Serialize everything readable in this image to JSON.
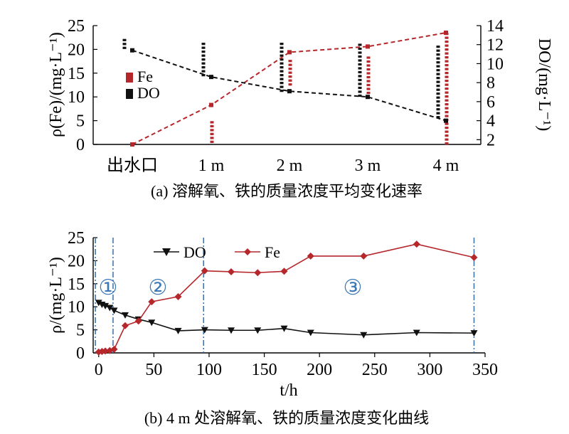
{
  "colors": {
    "fe": "#b5272b",
    "do": "#111111",
    "divider": "#3b6ea8",
    "circled": "#3b78b5"
  },
  "chart_data": [
    {
      "type": "line",
      "caption": "(a) 溶解氧、铁的质量浓度平均变化速率",
      "categories": [
        "出水口",
        "1 m",
        "2 m",
        "3 m",
        "4 m"
      ],
      "y_left_label": "ρ(Fe)/(mg·L⁻¹)",
      "y_right_label": "DO/(mg·L⁻¹)",
      "y_left_range": [
        0,
        25
      ],
      "y_left_ticks": [
        "0",
        "5",
        "10",
        "15",
        "20",
        "25"
      ],
      "y_right_range": [
        1.5,
        14
      ],
      "y_right_ticks": [
        "2",
        "4",
        "6",
        "8",
        "10",
        "12",
        "14"
      ],
      "legend": [
        "Fe",
        "DO"
      ],
      "series": [
        {
          "name": "Fe",
          "axis": "left",
          "values": [
            0,
            8.3,
            19.4,
            20.6,
            23.5
          ]
        },
        {
          "name": "DO",
          "axis": "right",
          "values": [
            11.4,
            8.6,
            7.1,
            6.5,
            4.0
          ]
        }
      ]
    },
    {
      "type": "line",
      "caption": "(b) 4 m 处溶解氧、铁的质量浓度变化曲线",
      "xlabel": "t/h",
      "ylabel": "ρ/(mg·L⁻¹)",
      "xlim": [
        -5,
        350
      ],
      "ylim": [
        0,
        25
      ],
      "x_ticks": [
        "0",
        "50",
        "100",
        "150",
        "200",
        "250",
        "300",
        "350"
      ],
      "y_ticks": [
        "0",
        "5",
        "10",
        "15",
        "20",
        "25"
      ],
      "phase_labels": [
        "①",
        "②",
        "③"
      ],
      "phase_dividers": [
        -3,
        13,
        95,
        340
      ],
      "series": [
        {
          "name": "DO",
          "x": [
            0,
            3,
            6,
            10,
            14,
            24,
            36,
            48,
            72,
            96,
            120,
            144,
            168,
            192,
            240,
            288,
            340
          ],
          "y": [
            10.9,
            10.5,
            10.2,
            9.8,
            9.2,
            8.2,
            7.3,
            6.6,
            4.8,
            5.0,
            4.9,
            4.9,
            5.3,
            4.4,
            3.9,
            4.4,
            4.3
          ]
        },
        {
          "name": "Fe",
          "x": [
            0,
            3,
            6,
            10,
            14,
            24,
            36,
            48,
            72,
            96,
            120,
            144,
            168,
            192,
            240,
            288,
            340
          ],
          "y": [
            0.2,
            0.3,
            0.4,
            0.5,
            0.8,
            5.9,
            6.9,
            11.1,
            12.2,
            17.8,
            17.6,
            17.4,
            17.7,
            21.0,
            21.0,
            23.6,
            20.7
          ]
        }
      ]
    }
  ]
}
